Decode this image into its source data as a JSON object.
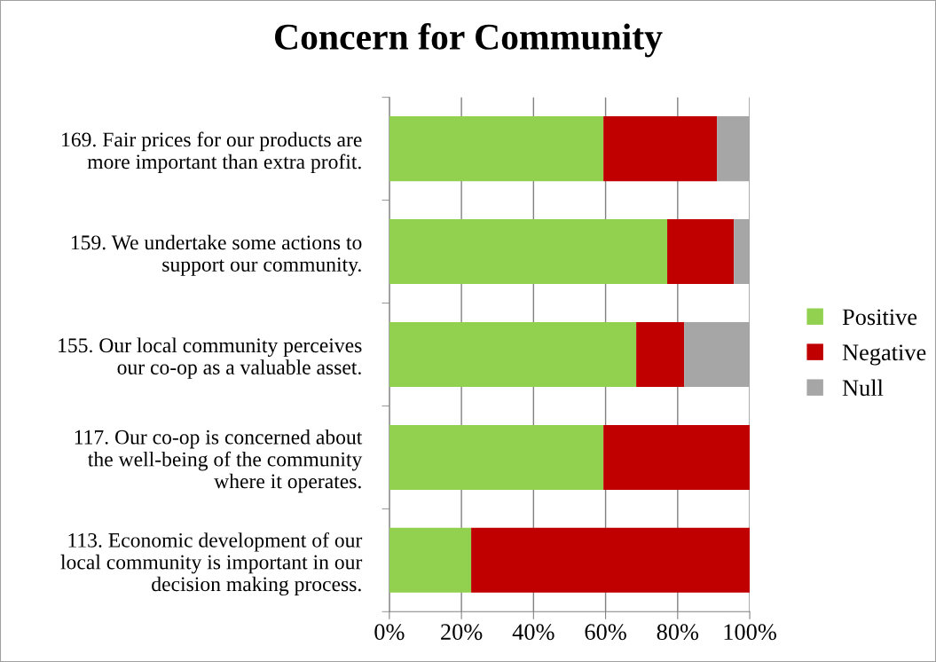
{
  "chart_data": {
    "type": "bar",
    "orientation": "horizontal",
    "stacked": true,
    "title": "Concern for Community",
    "categories": [
      "169. Fair prices for our products are\nmore important than extra profit.",
      "159. We undertake some actions to\nsupport our community.",
      "155. Our local community perceives\nour co-op as a valuable asset.",
      "117. Our co-op is concerned about\nthe well-being of the community\nwhere it operates.",
      "113. Economic development of our\nlocal community is important in our\ndecision making process."
    ],
    "series": [
      {
        "name": "Positive",
        "color": "#92d050",
        "values": [
          59.4,
          77.1,
          68.5,
          59.4,
          22.7
        ]
      },
      {
        "name": "Negative",
        "color": "#c00000",
        "values": [
          31.5,
          18.5,
          13.3,
          40.6,
          77.3
        ]
      },
      {
        "name": "Null",
        "color": "#a6a6a6",
        "values": [
          9.1,
          4.4,
          18.2,
          0,
          0
        ]
      }
    ],
    "xlim": [
      0,
      100
    ],
    "xticks": [
      {
        "value": 0,
        "label": "0%"
      },
      {
        "value": 20,
        "label": "20%"
      },
      {
        "value": 40,
        "label": "40%"
      },
      {
        "value": 60,
        "label": "60%"
      },
      {
        "value": 80,
        "label": "80%"
      },
      {
        "value": 100,
        "label": "100%"
      }
    ],
    "grid": "x",
    "legend": "right"
  }
}
